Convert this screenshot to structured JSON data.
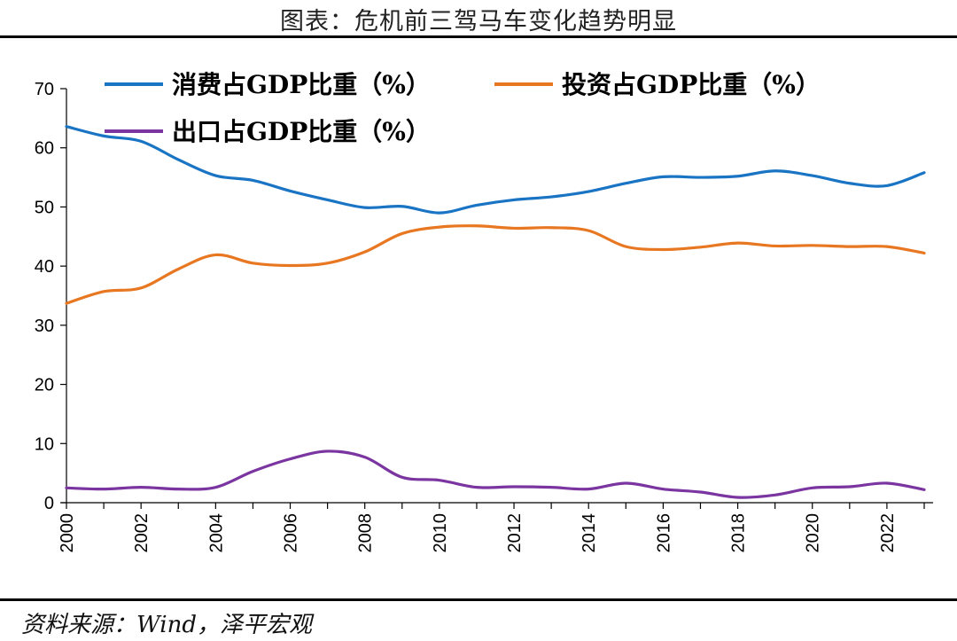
{
  "header": {
    "title": "图表：危机前三驾马车变化趋势明显"
  },
  "footer": {
    "source": "资料来源：Wind，泽平宏观"
  },
  "colors": {
    "consumption": "#1a74c4",
    "investment": "#e87722",
    "export": "#7b35a0"
  },
  "chart_data": {
    "type": "line",
    "title": "",
    "xlabel": "",
    "ylabel": "",
    "ylim": [
      0,
      70
    ],
    "yticks": [
      0,
      10,
      20,
      30,
      40,
      50,
      60,
      70
    ],
    "xlim": [
      2000,
      2023
    ],
    "xtick_labels": [
      "2000",
      "2002",
      "2004",
      "2006",
      "2008",
      "2010",
      "2012",
      "2014",
      "2016",
      "2018",
      "2020",
      "2022"
    ],
    "grid": false,
    "legend_position": "top",
    "x": [
      2000,
      2001,
      2002,
      2003,
      2004,
      2005,
      2006,
      2007,
      2008,
      2009,
      2010,
      2011,
      2012,
      2013,
      2014,
      2015,
      2016,
      2017,
      2018,
      2019,
      2020,
      2021,
      2022,
      2023
    ],
    "series": [
      {
        "name": "消费占GDP比重（%）",
        "color": "#1a74c4",
        "values": [
          63.6,
          62.0,
          61.1,
          58.0,
          55.3,
          54.5,
          52.7,
          51.2,
          49.9,
          50.1,
          49.0,
          50.3,
          51.2,
          51.7,
          52.6,
          54.0,
          55.1,
          55.0,
          55.2,
          56.1,
          55.3,
          54.0,
          53.6,
          55.8
        ]
      },
      {
        "name": "投资占GDP比重（%）",
        "color": "#e87722",
        "values": [
          33.7,
          35.7,
          36.3,
          39.5,
          41.9,
          40.5,
          40.1,
          40.5,
          42.4,
          45.5,
          46.6,
          46.8,
          46.4,
          46.5,
          46.0,
          43.3,
          42.8,
          43.2,
          43.9,
          43.4,
          43.5,
          43.3,
          43.3,
          42.2
        ]
      },
      {
        "name": "出口占GDP比重（%）",
        "color": "#7b35a0",
        "values": [
          2.5,
          2.3,
          2.6,
          2.3,
          2.6,
          5.3,
          7.4,
          8.7,
          7.7,
          4.3,
          3.8,
          2.6,
          2.7,
          2.6,
          2.3,
          3.3,
          2.3,
          1.8,
          0.9,
          1.3,
          2.5,
          2.7,
          3.3,
          2.2
        ]
      }
    ]
  }
}
